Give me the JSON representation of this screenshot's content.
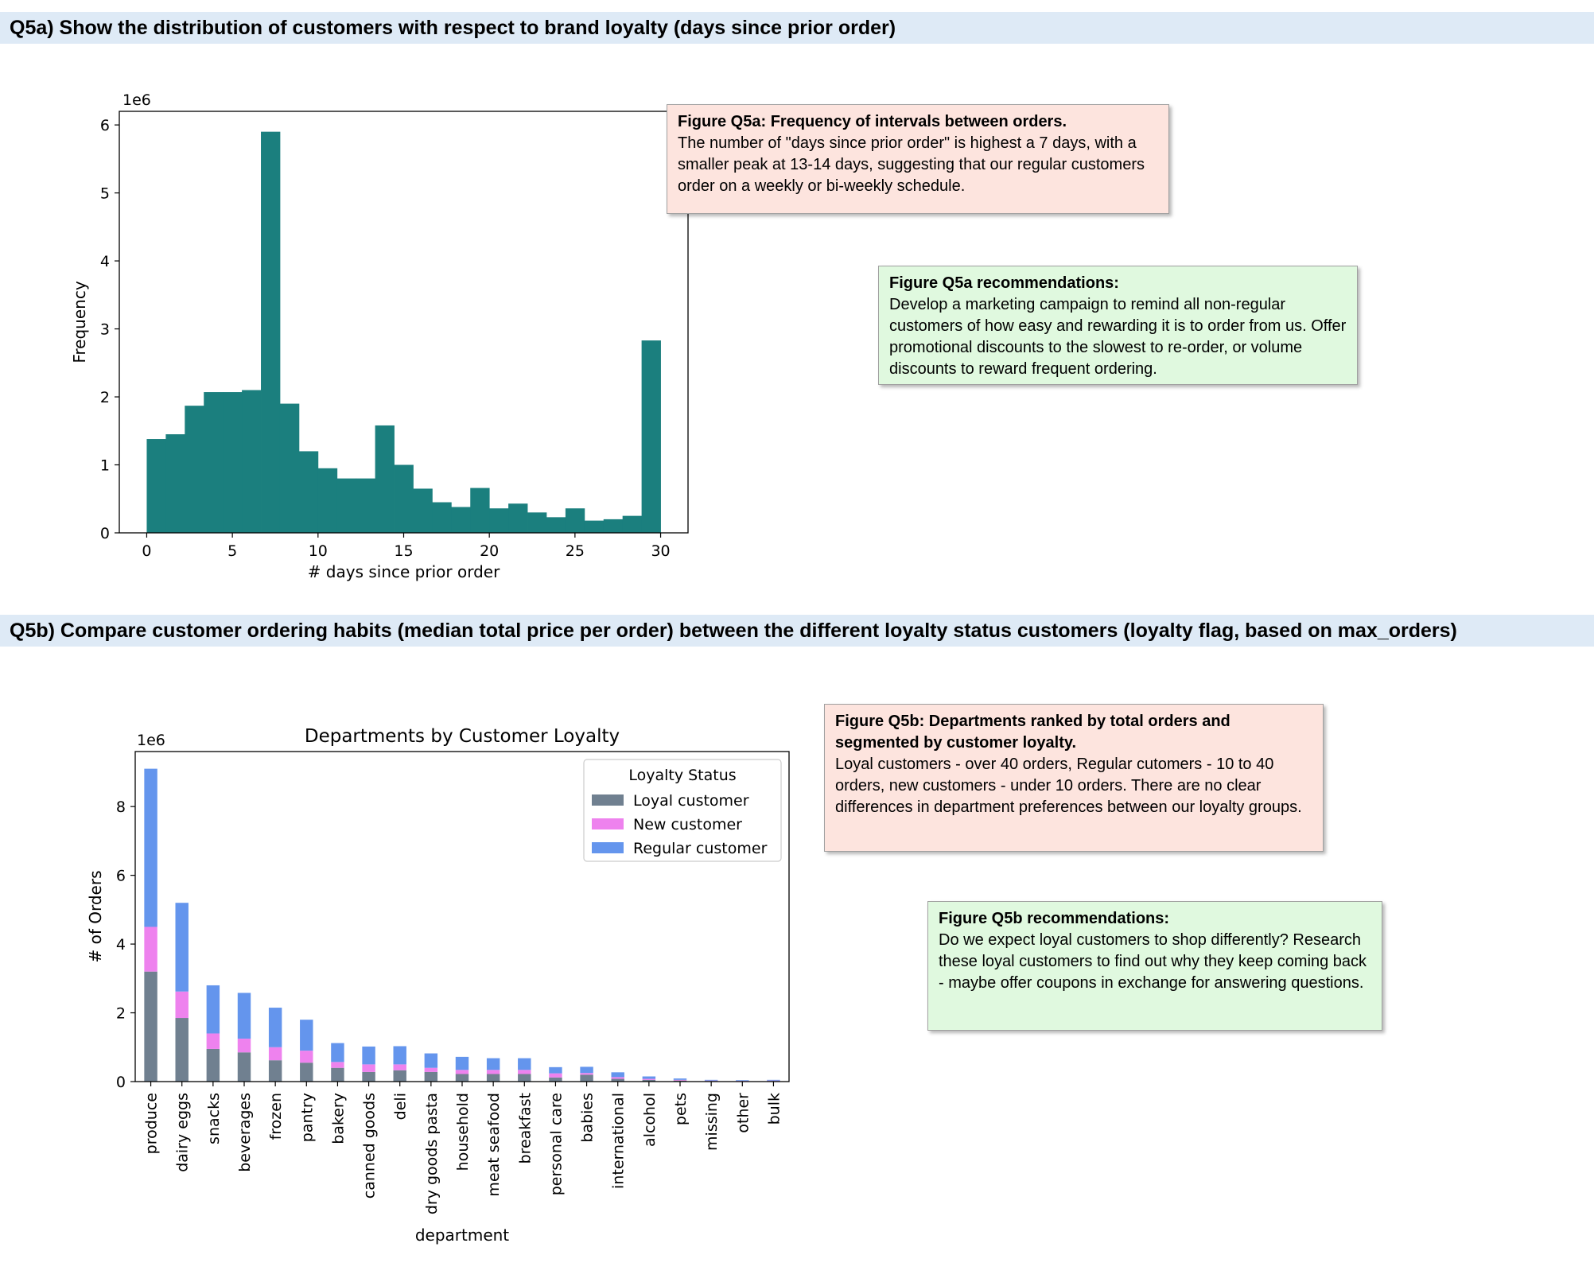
{
  "sections": {
    "q5a_header": "Q5a) Show the distribution of customers with respect to brand loyalty (days since prior order)",
    "q5b_header": "Q5b) Compare customer ordering habits (median total price per order) between the different loyalty status customers (loyalty flag, based on max_orders)"
  },
  "notes": {
    "q5a_figure": {
      "title": "Figure Q5a: Frequency of intervals between orders.",
      "body": "The number of \"days since prior order\" is highest a 7 days, with a smaller peak at 13-14 days, suggesting that our regular customers order on a weekly or bi-weekly schedule."
    },
    "q5a_recommendations": {
      "title": "Figure Q5a recommendations:",
      "body": "Develop a marketing campaign to remind all non-regular customers of how easy and rewarding it is to order from us. Offer promotional discounts to the slowest to re-order, or volume discounts to reward frequent ordering."
    },
    "q5b_figure": {
      "title": "Figure Q5b: Departments ranked by total orders and segmented by customer loyalty.",
      "body": "Loyal customers - over 40 orders, Regular cutomers - 10 to 40 orders, new customers - under 10 orders. There are no clear differences in department preferences between our loyalty groups."
    },
    "q5b_recommendations": {
      "title": "Figure Q5b recommendations:",
      "body": "Do we expect loyal customers to shop differently? Research these loyal customers to find out why they keep coming back - maybe offer coupons in exchange for answering questions."
    }
  },
  "chart_data": [
    {
      "type": "bar",
      "subtype": "histogram",
      "title": "",
      "xlabel": "# days since prior order",
      "ylabel": "Frequency",
      "y_multiplier_label": "1e6",
      "color": "#1b7f7e",
      "bins": [
        {
          "start": 0,
          "end": 1,
          "value": 1.38
        },
        {
          "start": 1,
          "end": 2,
          "value": 1.45
        },
        {
          "start": 2,
          "end": 3,
          "value": 1.87
        },
        {
          "start": 3,
          "end": 4,
          "value": 2.07
        },
        {
          "start": 4,
          "end": 5,
          "value": 2.07
        },
        {
          "start": 5,
          "end": 6,
          "value": 2.1
        },
        {
          "start": 6,
          "end": 7,
          "value": 5.9
        },
        {
          "start": 7,
          "end": 8,
          "value": 1.9
        },
        {
          "start": 8,
          "end": 9,
          "value": 1.2
        },
        {
          "start": 9,
          "end": 10,
          "value": 0.95
        },
        {
          "start": 10,
          "end": 11,
          "value": 0.8
        },
        {
          "start": 11,
          "end": 12,
          "value": 0.8
        },
        {
          "start": 12,
          "end": 13,
          "value": 1.58
        },
        {
          "start": 13,
          "end": 14,
          "value": 1.0
        },
        {
          "start": 14,
          "end": 15,
          "value": 0.65
        },
        {
          "start": 15,
          "end": 16,
          "value": 0.45
        },
        {
          "start": 16,
          "end": 17,
          "value": 0.38
        },
        {
          "start": 17,
          "end": 18,
          "value": 0.66
        },
        {
          "start": 18,
          "end": 19,
          "value": 0.36
        },
        {
          "start": 19,
          "end": 20,
          "value": 0.43
        },
        {
          "start": 20,
          "end": 21,
          "value": 0.3
        },
        {
          "start": 21,
          "end": 22,
          "value": 0.23
        },
        {
          "start": 22,
          "end": 23,
          "value": 0.36
        },
        {
          "start": 23,
          "end": 24,
          "value": 0.18
        },
        {
          "start": 24,
          "end": 25,
          "value": 0.2
        },
        {
          "start": 25,
          "end": 26,
          "value": 0.25
        },
        {
          "start": 26,
          "end": 27,
          "value": 2.83
        }
      ],
      "xlim": [
        -1.6,
        31.6
      ],
      "ylim": [
        0,
        6.2
      ],
      "xticks": [
        0,
        5,
        10,
        15,
        20,
        25,
        30
      ],
      "yticks": [
        0,
        1,
        2,
        3,
        4,
        5,
        6
      ],
      "grid": false
    },
    {
      "type": "bar",
      "subtype": "stacked",
      "title": "Departments by Customer Loyalty",
      "xlabel": "department",
      "ylabel": "# of Orders",
      "y_multiplier_label": "1e6",
      "legend_title": "Loyalty Status",
      "legend_position": "top-right",
      "categories": [
        "produce",
        "dairy eggs",
        "snacks",
        "beverages",
        "frozen",
        "pantry",
        "bakery",
        "canned goods",
        "deli",
        "dry goods pasta",
        "household",
        "meat seafood",
        "breakfast",
        "personal care",
        "babies",
        "international",
        "alcohol",
        "pets",
        "missing",
        "other",
        "bulk"
      ],
      "series": [
        {
          "name": "Loyal customer",
          "color": "#708090",
          "values": [
            3.2,
            1.85,
            0.95,
            0.85,
            0.62,
            0.55,
            0.4,
            0.28,
            0.33,
            0.28,
            0.22,
            0.22,
            0.22,
            0.12,
            0.2,
            0.08,
            0.05,
            0.03,
            0.02,
            0.01,
            0.02
          ]
        },
        {
          "name": "New customer",
          "color": "#ee82ee",
          "values": [
            1.3,
            0.77,
            0.45,
            0.4,
            0.38,
            0.35,
            0.17,
            0.22,
            0.17,
            0.12,
            0.12,
            0.12,
            0.12,
            0.12,
            0.05,
            0.05,
            0.03,
            0.02,
            0.01,
            0.01,
            0.01
          ]
        },
        {
          "name": "Regular customer",
          "color": "#6495ed",
          "values": [
            4.6,
            2.58,
            1.4,
            1.33,
            1.15,
            0.9,
            0.55,
            0.52,
            0.53,
            0.42,
            0.38,
            0.34,
            0.34,
            0.18,
            0.18,
            0.14,
            0.07,
            0.04,
            0.02,
            0.02,
            0.02
          ]
        }
      ],
      "ylim": [
        0,
        9.6
      ],
      "yticks": [
        0,
        2,
        4,
        6,
        8
      ],
      "grid": false
    }
  ]
}
